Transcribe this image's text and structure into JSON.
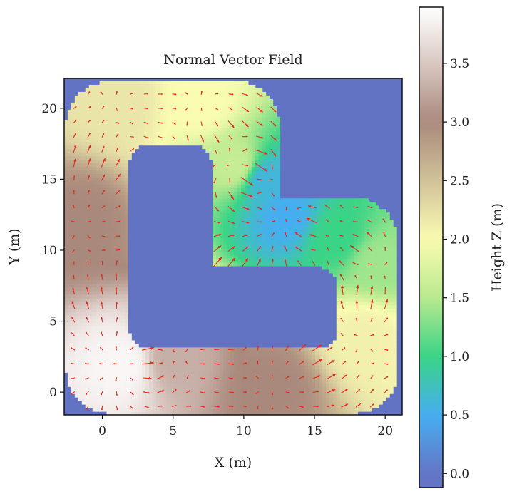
{
  "chart_data": {
    "type": "heatmap",
    "title": "Normal Vector Field",
    "xlabel": "X (m)",
    "ylabel": "Y (m)",
    "xlim": [
      -2.7,
      21.2
    ],
    "ylim": [
      -1.6,
      22.1
    ],
    "xticks": [
      0,
      5,
      10,
      15,
      20
    ],
    "yticks": [
      0,
      5,
      10,
      15,
      20
    ],
    "background_value_color": "#6273c4",
    "colorbar": {
      "label": "Height Z (m)",
      "range": [
        -0.12,
        3.98
      ],
      "ticks": [
        "0.0",
        "0.5",
        "1.0",
        "1.5",
        "2.0",
        "2.5",
        "3.0",
        "3.5"
      ],
      "tick_values": [
        0.0,
        0.5,
        1.0,
        1.5,
        2.0,
        2.5,
        3.0,
        3.5
      ],
      "colormap": "terrain-like",
      "stops": [
        {
          "v": 0.0,
          "color": "#6575c6"
        },
        {
          "v": 0.5,
          "color": "#46aef0"
        },
        {
          "v": 1.0,
          "color": "#3ad486"
        },
        {
          "v": 1.5,
          "color": "#b9e98f"
        },
        {
          "v": 2.0,
          "color": "#fafcb2"
        },
        {
          "v": 2.4,
          "color": "#d9cd9e"
        },
        {
          "v": 3.0,
          "color": "#a9897c"
        },
        {
          "v": 3.5,
          "color": "#d9c8c2"
        },
        {
          "v": 3.95,
          "color": "#fdfcfc"
        }
      ]
    },
    "surface": {
      "description_region": "L-shaped closed ribbon track with inner hole",
      "height_samples": [
        {
          "x": 1.5,
          "y": 2.0,
          "z": 3.9
        },
        {
          "x": -1.5,
          "y": 12.0,
          "z": 3.0
        },
        {
          "x": 1.0,
          "y": 20.5,
          "z": 2.2
        },
        {
          "x": 7.0,
          "y": 20.5,
          "z": 2.0
        },
        {
          "x": 9.5,
          "y": 16.0,
          "z": 1.6
        },
        {
          "x": 11.5,
          "y": 15.0,
          "z": 0.6
        },
        {
          "x": 13.0,
          "y": 12.5,
          "z": 0.5
        },
        {
          "x": 16.5,
          "y": 11.0,
          "z": 1.0
        },
        {
          "x": 19.5,
          "y": 9.0,
          "z": 1.4
        },
        {
          "x": 18.5,
          "y": 4.0,
          "z": 2.1
        },
        {
          "x": 12.0,
          "y": 0.5,
          "z": 3.0
        },
        {
          "x": 5.0,
          "y": 2.5,
          "z": 3.3
        }
      ]
    },
    "vector_field": {
      "color": "#e8281c",
      "grid_spacing": 1.0,
      "quantity": "surface normal (horizontal component)"
    }
  }
}
